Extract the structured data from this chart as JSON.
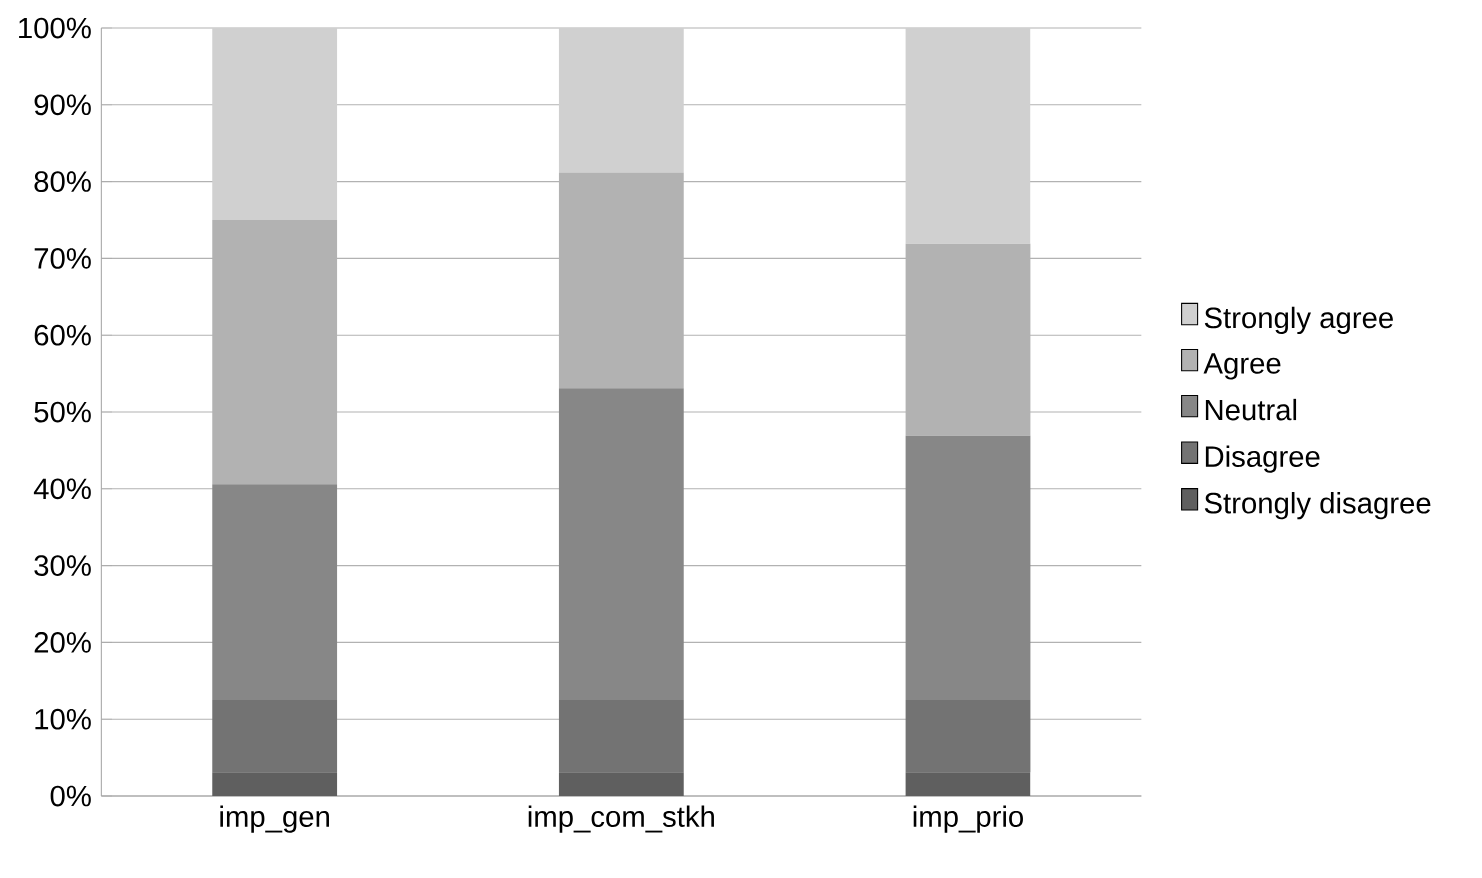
{
  "chart_data": {
    "type": "bar",
    "stacked": true,
    "categories": [
      "imp_gen",
      "imp_com_stkh",
      "imp_prio"
    ],
    "series": [
      {
        "name": "Strongly disagree",
        "color": "#5f5f5f",
        "values": [
          3.1,
          3.1,
          3.1
        ]
      },
      {
        "name": "Disagree",
        "color": "#737373",
        "values": [
          9.4,
          9.4,
          9.4
        ]
      },
      {
        "name": "Neutral",
        "color": "#878787",
        "values": [
          28.1,
          40.6,
          34.4
        ]
      },
      {
        "name": "Agree",
        "color": "#b2b2b2",
        "values": [
          34.4,
          28.1,
          25.0
        ]
      },
      {
        "name": "Strongly agree",
        "color": "#d0d0d0",
        "values": [
          25.0,
          18.8,
          28.1
        ]
      }
    ],
    "ylim": [
      0,
      100
    ],
    "yticks": [
      {
        "value": 0,
        "label": "0%"
      },
      {
        "value": 10,
        "label": "10%"
      },
      {
        "value": 20,
        "label": "20%"
      },
      {
        "value": 30,
        "label": "30%"
      },
      {
        "value": 40,
        "label": "40%"
      },
      {
        "value": 50,
        "label": "50%"
      },
      {
        "value": 60,
        "label": "60%"
      },
      {
        "value": 70,
        "label": "70%"
      },
      {
        "value": 80,
        "label": "80%"
      },
      {
        "value": 90,
        "label": "90%"
      },
      {
        "value": 100,
        "label": "100%"
      }
    ],
    "grid": "y",
    "legend": "right"
  }
}
